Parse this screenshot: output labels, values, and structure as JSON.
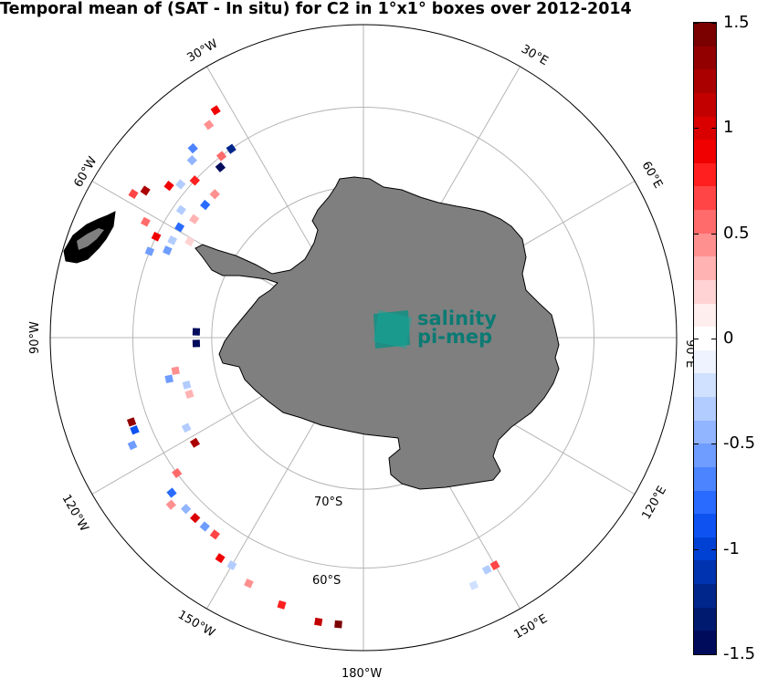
{
  "title": "Temporal mean of (SAT - In situ) for C2 in 1°x1° boxes over 2012-2014",
  "map": {
    "projection": "south polar stereographic",
    "land_color": "#7f7f7f",
    "ocean_color": "#ffffff",
    "grid_color": "#b5b5b5",
    "meridian_labels": [
      "30°W",
      "30°E",
      "60°W",
      "60°E",
      "90°W",
      "90°E",
      "120°W",
      "120°E",
      "150°W",
      "150°E",
      "180°W"
    ],
    "parallel_labels": [
      "70°S",
      "60°S"
    ]
  },
  "logo": {
    "line1": "salinity",
    "line2": "pi-mep",
    "color": "#0a7a73"
  },
  "colorbar": {
    "min": -1.5,
    "max": 1.5,
    "tick_labels": [
      "1.5",
      "1",
      "0.5",
      "0",
      "-0.5",
      "-1",
      "-1.5"
    ],
    "tick_values": [
      1.5,
      1,
      0.5,
      0,
      -0.5,
      -1,
      -1.5
    ],
    "colors_top_to_bottom": [
      "#7b0000",
      "#930000",
      "#ab0000",
      "#c30000",
      "#db0000",
      "#f00000",
      "#ff1f1f",
      "#ff4545",
      "#ff6b6b",
      "#ff9090",
      "#ffb3b3",
      "#ffd3d3",
      "#ffeeee",
      "#ffffff",
      "#eef3ff",
      "#d0e0ff",
      "#b3ccff",
      "#92b5ff",
      "#6f9cff",
      "#4c83ff",
      "#2a6bff",
      "#0e53f2",
      "#0041d4",
      "#0033b0",
      "#00268c",
      "#001a70",
      "#000b5c"
    ]
  },
  "anomaly_boxes": [
    {
      "lon": -33,
      "lat": -55,
      "value": 0.9
    },
    {
      "lon": -36,
      "lat": -56,
      "value": 0.4
    },
    {
      "lon": -42,
      "lat": -57,
      "value": -0.7
    },
    {
      "lon": -44,
      "lat": -58,
      "value": -0.4
    },
    {
      "lon": -38,
      "lat": -60,
      "value": 0.6
    },
    {
      "lon": -40,
      "lat": -61,
      "value": -1.5
    },
    {
      "lon": -35,
      "lat": -60,
      "value": -1.2
    },
    {
      "lon": -47,
      "lat": -60,
      "value": 0.8
    },
    {
      "lon": -50,
      "lat": -59,
      "value": -0.3
    },
    {
      "lon": -52,
      "lat": -58,
      "value": 0.9
    },
    {
      "lon": -56,
      "lat": -56,
      "value": 1.2
    },
    {
      "lon": -58,
      "lat": -55,
      "value": 0.7
    },
    {
      "lon": -50,
      "lat": -63,
      "value": -0.8
    },
    {
      "lon": -46,
      "lat": -63,
      "value": 0.5
    },
    {
      "lon": -55,
      "lat": -61,
      "value": -0.3
    },
    {
      "lon": -62,
      "lat": -58,
      "value": 0.6
    },
    {
      "lon": -64,
      "lat": -60,
      "value": 0.9
    },
    {
      "lon": -66,
      "lat": -62,
      "value": -0.6
    },
    {
      "lon": -63,
      "lat": -62,
      "value": -0.3
    },
    {
      "lon": -59,
      "lat": -62,
      "value": -0.8
    },
    {
      "lon": -55,
      "lat": -63,
      "value": 0.3
    },
    {
      "lon": -68,
      "lat": -60,
      "value": -0.5
    },
    {
      "lon": -61,
      "lat": -64,
      "value": 0.2
    },
    {
      "lon": -88,
      "lat": -68,
      "value": -1.4
    },
    {
      "lon": -92,
      "lat": -68,
      "value": -1.5
    },
    {
      "lon": -100,
      "lat": -65,
      "value": 0.5
    },
    {
      "lon": -102,
      "lat": -64,
      "value": -0.6
    },
    {
      "lon": -105,
      "lat": -66,
      "value": -0.3
    },
    {
      "lon": -108,
      "lat": -66,
      "value": 0.3
    },
    {
      "lon": -110,
      "lat": -58,
      "value": 1.3
    },
    {
      "lon": -112,
      "lat": -58,
      "value": -0.9
    },
    {
      "lon": -115,
      "lat": -57,
      "value": -0.6
    },
    {
      "lon": -117,
      "lat": -64,
      "value": -0.3
    },
    {
      "lon": -122,
      "lat": -64,
      "value": 1.2
    },
    {
      "lon": -126,
      "lat": -60,
      "value": 0.6
    },
    {
      "lon": -129,
      "lat": -58,
      "value": -0.8
    },
    {
      "lon": -131,
      "lat": -57,
      "value": 0.4
    },
    {
      "lon": -134,
      "lat": -58,
      "value": -0.4
    },
    {
      "lon": -137,
      "lat": -58,
      "value": 1.0
    },
    {
      "lon": -140,
      "lat": -58,
      "value": -0.5
    },
    {
      "lon": -143,
      "lat": -58,
      "value": 0.7
    },
    {
      "lon": -147,
      "lat": -56,
      "value": 0.9
    },
    {
      "lon": -150,
      "lat": -56,
      "value": -0.3
    },
    {
      "lon": -155,
      "lat": -55,
      "value": 0.4
    },
    {
      "lon": -163,
      "lat": -54,
      "value": 0.8
    },
    {
      "lon": -171,
      "lat": -53,
      "value": 1.1
    },
    {
      "lon": -175,
      "lat": -53,
      "value": 1.4
    },
    {
      "lon": 150,
      "lat": -56,
      "value": 0.7
    },
    {
      "lon": 152,
      "lat": -56,
      "value": -0.3
    },
    {
      "lon": 156,
      "lat": -55,
      "value": -0.2
    }
  ]
}
